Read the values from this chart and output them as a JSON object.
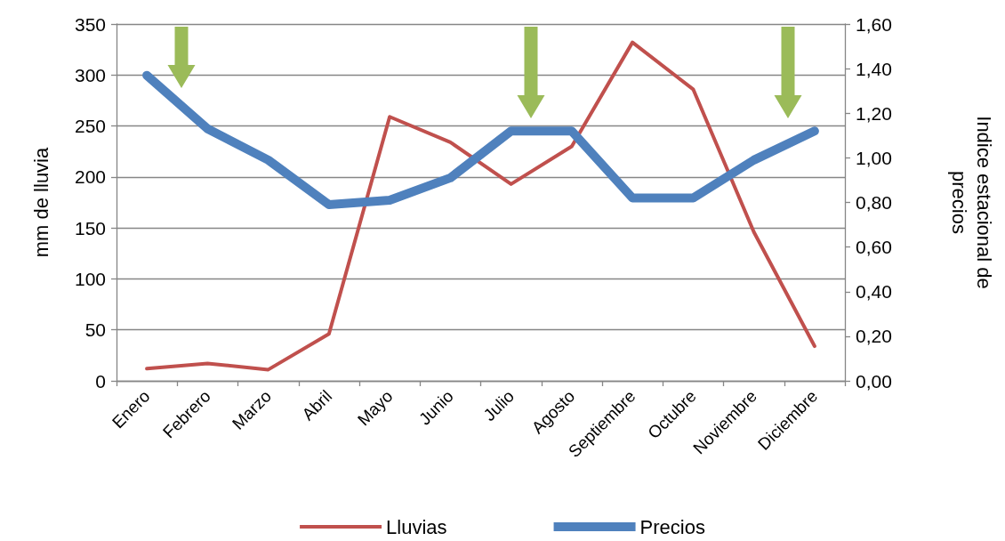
{
  "chart_data": {
    "type": "line",
    "categories": [
      "Enero",
      "Febrero",
      "Marzo",
      "Abril",
      "Mayo",
      "Junio",
      "Julio",
      "Agosto",
      "Septiembre",
      "Octubre",
      "Noviembre",
      "Diciembre"
    ],
    "series": [
      {
        "name": "Lluvias",
        "color": "#c0504d",
        "values": [
          12,
          17,
          11,
          46,
          259,
          234,
          193,
          230,
          332,
          286,
          146,
          34
        ]
      },
      {
        "name": "Precios",
        "color": "#4f81bd",
        "axis": "y2",
        "values": [
          1.37,
          1.13,
          0.99,
          0.79,
          0.81,
          0.91,
          1.12,
          1.12,
          0.82,
          0.82,
          0.99,
          1.12
        ]
      }
    ],
    "ylabel": "mm de lluvia",
    "y2label": "Indice estacional de precios",
    "ylim": [
      0,
      350
    ],
    "yticks": [
      0,
      50,
      100,
      150,
      200,
      250,
      300,
      350
    ],
    "y2lim": [
      0,
      1.6
    ],
    "y2ticks": [
      {
        "value": 0,
        "label": "0,00"
      },
      {
        "value": 0.2,
        "label": "0,20"
      },
      {
        "value": 0.4,
        "label": "0,40"
      },
      {
        "value": 0.6,
        "label": "0,60"
      },
      {
        "value": 0.8,
        "label": "0,80"
      },
      {
        "value": 1,
        "label": "1,00"
      },
      {
        "value": 1.2,
        "label": "1,20"
      },
      {
        "value": 1.4,
        "label": "1,40"
      },
      {
        "value": 1.6,
        "label": "1,60"
      }
    ],
    "grid": "y",
    "legend": "bottom",
    "marker": "none",
    "line_style": "solid"
  }
}
